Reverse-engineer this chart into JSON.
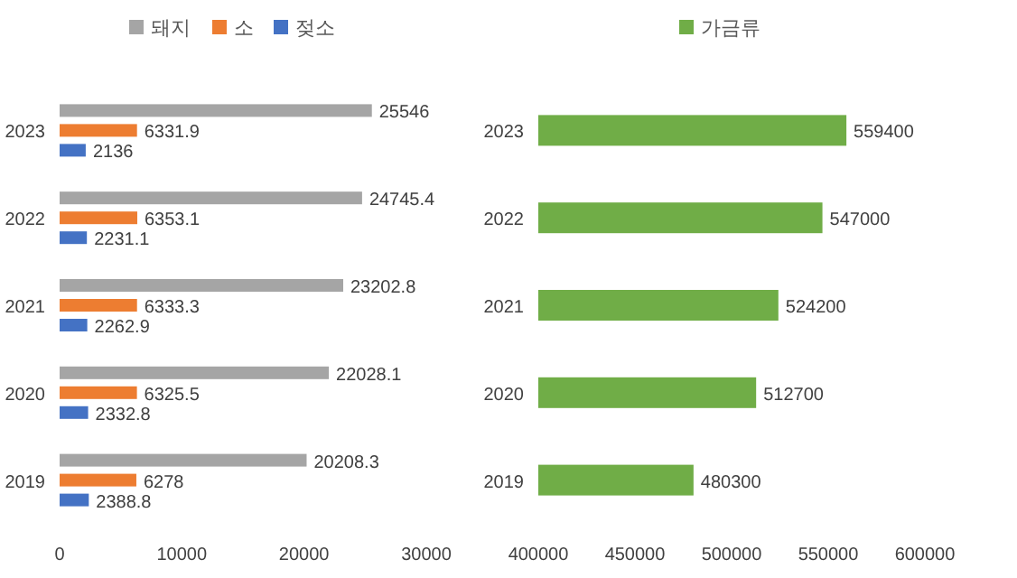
{
  "chart_data": [
    {
      "type": "bar",
      "orientation": "horizontal",
      "categories": [
        "2023",
        "2022",
        "2021",
        "2020",
        "2019"
      ],
      "series": [
        {
          "name": "돼지",
          "color": "#a5a5a5",
          "values": [
            25546,
            24745.4,
            23202.8,
            22028.1,
            20208.3
          ]
        },
        {
          "name": "소",
          "color": "#ed7d31",
          "values": [
            6331.9,
            6353.1,
            6333.3,
            6325.5,
            6278
          ]
        },
        {
          "name": "젖소",
          "color": "#4472c4",
          "values": [
            2136,
            2231.1,
            2262.9,
            2332.8,
            2388.8
          ]
        }
      ],
      "xlim": [
        0,
        30000
      ],
      "xticks": [
        0,
        10000,
        20000,
        30000
      ],
      "data_labels": true,
      "legend": "top",
      "grid": false
    },
    {
      "type": "bar",
      "orientation": "horizontal",
      "categories": [
        "2023",
        "2022",
        "2021",
        "2020",
        "2019"
      ],
      "series": [
        {
          "name": "가금류",
          "color": "#70ad47",
          "values": [
            559400,
            547000,
            524200,
            512700,
            480300
          ]
        }
      ],
      "xlim": [
        400000,
        600000
      ],
      "xticks": [
        400000,
        450000,
        500000,
        550000,
        600000
      ],
      "data_labels": true,
      "legend": "top",
      "grid": false
    }
  ]
}
